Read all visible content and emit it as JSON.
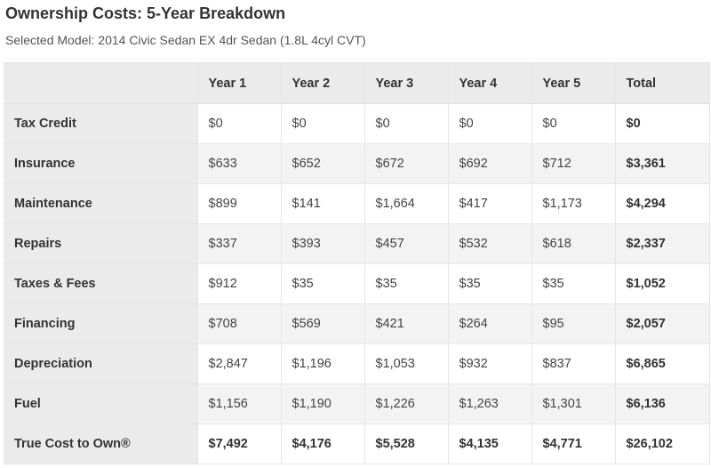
{
  "page": {
    "title": "Ownership Costs: 5-Year Breakdown",
    "subtitle": "Selected Model: 2014 Civic Sedan EX 4dr Sedan (1.8L 4cyl CVT)"
  },
  "table": {
    "headers": [
      "",
      "Year 1",
      "Year 2",
      "Year 3",
      "Year 4",
      "Year 5",
      "Total"
    ],
    "rows": [
      {
        "label": "Tax Credit",
        "values": [
          "$0",
          "$0",
          "$0",
          "$0",
          "$0"
        ],
        "total": "$0"
      },
      {
        "label": "Insurance",
        "values": [
          "$633",
          "$652",
          "$672",
          "$692",
          "$712"
        ],
        "total": "$3,361"
      },
      {
        "label": "Maintenance",
        "values": [
          "$899",
          "$141",
          "$1,664",
          "$417",
          "$1,173"
        ],
        "total": "$4,294"
      },
      {
        "label": "Repairs",
        "values": [
          "$337",
          "$393",
          "$457",
          "$532",
          "$618"
        ],
        "total": "$2,337"
      },
      {
        "label": "Taxes & Fees",
        "values": [
          "$912",
          "$35",
          "$35",
          "$35",
          "$35"
        ],
        "total": "$1,052"
      },
      {
        "label": "Financing",
        "values": [
          "$708",
          "$569",
          "$421",
          "$264",
          "$95"
        ],
        "total": "$2,057"
      },
      {
        "label": "Depreciation",
        "values": [
          "$2,847",
          "$1,196",
          "$1,053",
          "$932",
          "$837"
        ],
        "total": "$6,865"
      },
      {
        "label": "Fuel",
        "values": [
          "$1,156",
          "$1,190",
          "$1,226",
          "$1,263",
          "$1,301"
        ],
        "total": "$6,136"
      },
      {
        "label": "True Cost to Own®",
        "values": [
          "$7,492",
          "$4,176",
          "$5,528",
          "$4,135",
          "$4,771"
        ],
        "total": "$26,102"
      }
    ]
  }
}
